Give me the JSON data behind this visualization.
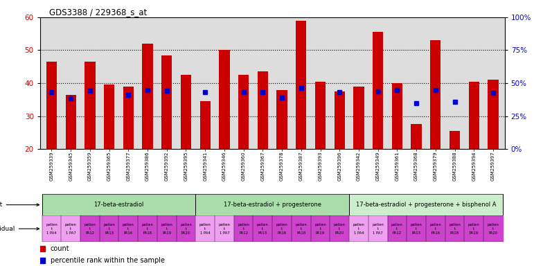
{
  "title": "GDS3388 / 229368_s_at",
  "gsm_ids": [
    "GSM259339",
    "GSM259345",
    "GSM259359",
    "GSM259365",
    "GSM259377",
    "GSM259386",
    "GSM259392",
    "GSM259395",
    "GSM259341",
    "GSM259346",
    "GSM259360",
    "GSM259367",
    "GSM259378",
    "GSM259387",
    "GSM259393",
    "GSM259396",
    "GSM259342",
    "GSM259349",
    "GSM259361",
    "GSM259368",
    "GSM259379",
    "GSM259388",
    "GSM259394",
    "GSM259397"
  ],
  "counts": [
    46.5,
    36.5,
    46.5,
    39.5,
    39.0,
    52.0,
    48.5,
    42.5,
    34.5,
    50.0,
    42.5,
    43.5,
    38.0,
    59.0,
    40.5,
    37.5,
    39.0,
    55.5,
    40.0,
    27.5,
    53.0,
    25.5,
    40.5,
    41.0
  ],
  "percentile_ranks": [
    43.0,
    38.5,
    44.0,
    null,
    41.0,
    45.0,
    44.0,
    null,
    43.0,
    null,
    43.0,
    43.0,
    39.0,
    46.5,
    null,
    43.0,
    null,
    43.5,
    45.0,
    35.0,
    44.5,
    36.0,
    null,
    42.5
  ],
  "bar_color": "#cc0000",
  "percentile_color": "#0000cc",
  "ylim_left": [
    20,
    60
  ],
  "ylim_right": [
    0,
    100
  ],
  "yticks_left": [
    20,
    30,
    40,
    50,
    60
  ],
  "yticks_right": [
    0,
    25,
    50,
    75,
    100
  ],
  "yticklabels_right": [
    "0%",
    "25%",
    "50%",
    "75%",
    "100%"
  ],
  "agent_groups": [
    {
      "label": "17-beta-estradiol",
      "start": 0,
      "end": 8,
      "color": "#aaddaa"
    },
    {
      "label": "17-beta-estradiol + progesterone",
      "start": 8,
      "end": 16,
      "color": "#aaddaa"
    },
    {
      "label": "17-beta-estradiol + progesterone + bisphenol A",
      "start": 16,
      "end": 24,
      "color": "#cceecc"
    }
  ],
  "bar_width": 0.55,
  "axis_bg": "#dddddd",
  "ind_labels_short": [
    "1 PA4",
    "1 PA7",
    "PA12",
    "PA13",
    "PA16",
    "PA18",
    "PA19",
    "PA20"
  ]
}
